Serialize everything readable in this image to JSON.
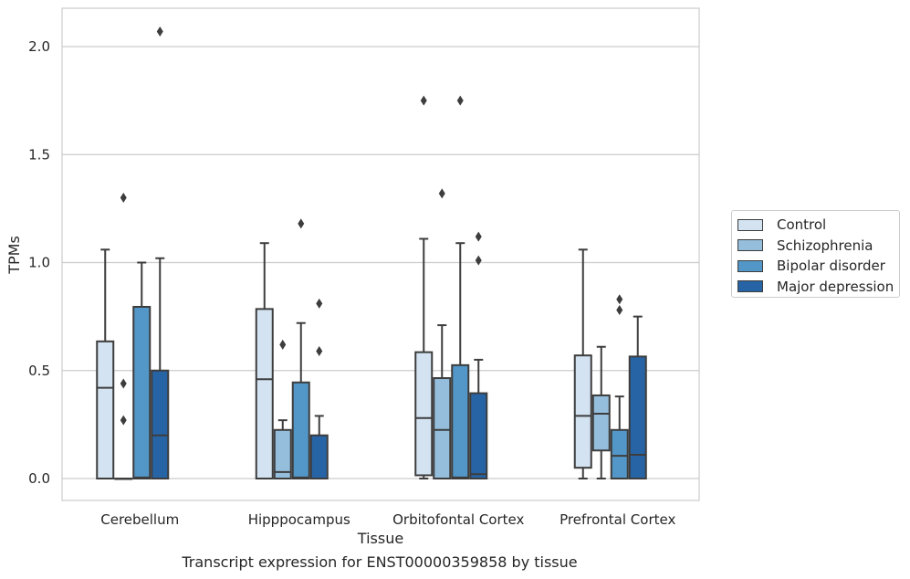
{
  "chart_data": {
    "type": "box",
    "title": "",
    "xlabel": "Tissue",
    "ylabel": "TPMs",
    "caption": "Transcript expression for ENST00000359858 by tissue",
    "categories": [
      "Cerebellum",
      "Hipppocampus",
      "Orbitofontal Cortex",
      "Prefrontal Cortex"
    ],
    "ylim": [
      -0.1,
      2.18
    ],
    "yticks": [
      "0.0",
      "0.5",
      "1.0",
      "1.5",
      "2.0"
    ],
    "grid": "horizontal",
    "legend_position": "right",
    "series": [
      {
        "name": "Control",
        "color": "#d4e3f1",
        "boxes": [
          {
            "q1": 0.0,
            "median": 0.42,
            "q3": 0.635,
            "whisker_low": 0.0,
            "whisker_high": 1.06,
            "outliers": []
          },
          {
            "q1": 0.0,
            "median": 0.46,
            "q3": 0.785,
            "whisker_low": 0.0,
            "whisker_high": 1.09,
            "outliers": []
          },
          {
            "q1": 0.015,
            "median": 0.28,
            "q3": 0.585,
            "whisker_low": 0.0,
            "whisker_high": 1.11,
            "outliers": [
              1.75
            ]
          },
          {
            "q1": 0.05,
            "median": 0.29,
            "q3": 0.57,
            "whisker_low": 0.0,
            "whisker_high": 1.06,
            "outliers": []
          }
        ]
      },
      {
        "name": "Schizophrenia",
        "color": "#95bedc",
        "boxes": [
          {
            "q1": 0.0,
            "median": 0.0,
            "q3": 0.0,
            "whisker_low": 0.0,
            "whisker_high": 0.0,
            "outliers": [
              1.3,
              0.44,
              0.27
            ]
          },
          {
            "q1": 0.0,
            "median": 0.03,
            "q3": 0.225,
            "whisker_low": 0.0,
            "whisker_high": 0.27,
            "outliers": [
              0.62
            ]
          },
          {
            "q1": 0.0,
            "median": 0.225,
            "q3": 0.465,
            "whisker_low": 0.0,
            "whisker_high": 0.71,
            "outliers": [
              1.32
            ]
          },
          {
            "q1": 0.13,
            "median": 0.3,
            "q3": 0.385,
            "whisker_low": 0.0,
            "whisker_high": 0.61,
            "outliers": []
          }
        ]
      },
      {
        "name": "Bipolar disorder",
        "color": "#5397c8",
        "boxes": [
          {
            "q1": 0.0,
            "median": 0.005,
            "q3": 0.795,
            "whisker_low": 0.0,
            "whisker_high": 1.0,
            "outliers": []
          },
          {
            "q1": 0.0,
            "median": 0.005,
            "q3": 0.445,
            "whisker_low": 0.0,
            "whisker_high": 0.72,
            "outliers": [
              1.18
            ]
          },
          {
            "q1": 0.0,
            "median": 0.005,
            "q3": 0.525,
            "whisker_low": 0.0,
            "whisker_high": 1.09,
            "outliers": [
              1.75
            ]
          },
          {
            "q1": 0.0,
            "median": 0.105,
            "q3": 0.225,
            "whisker_low": 0.0,
            "whisker_high": 0.38,
            "outliers": [
              0.83,
              0.78
            ]
          }
        ]
      },
      {
        "name": "Major depression",
        "color": "#2764a5",
        "boxes": [
          {
            "q1": 0.0,
            "median": 0.2,
            "q3": 0.5,
            "whisker_low": 0.0,
            "whisker_high": 1.02,
            "outliers": [
              2.07
            ]
          },
          {
            "q1": 0.0,
            "median": 0.0,
            "q3": 0.2,
            "whisker_low": 0.0,
            "whisker_high": 0.29,
            "outliers": [
              0.81,
              0.59
            ]
          },
          {
            "q1": 0.0,
            "median": 0.02,
            "q3": 0.395,
            "whisker_low": 0.0,
            "whisker_high": 0.55,
            "outliers": [
              1.12,
              1.01
            ]
          },
          {
            "q1": 0.0,
            "median": 0.11,
            "q3": 0.565,
            "whisker_low": 0.0,
            "whisker_high": 0.75,
            "outliers": []
          }
        ]
      }
    ]
  }
}
